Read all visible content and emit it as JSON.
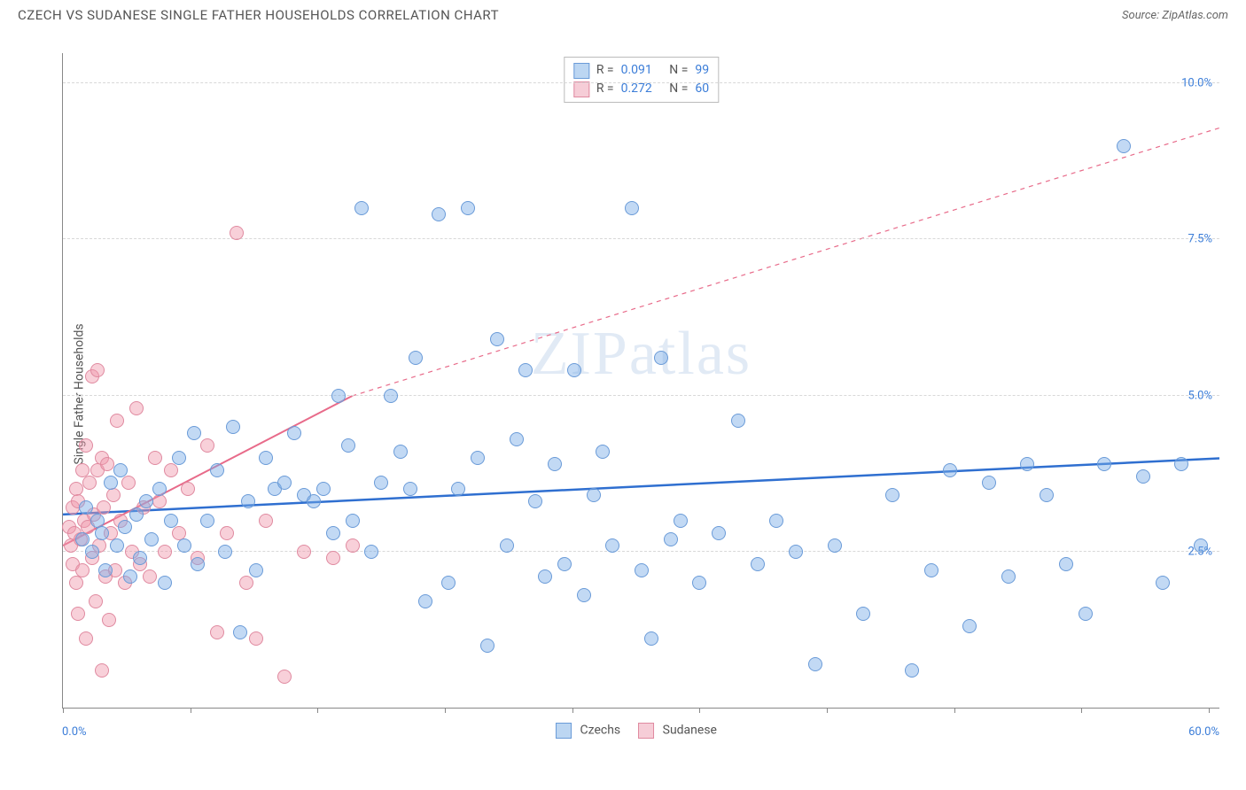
{
  "title": "CZECH VS SUDANESE SINGLE FATHER HOUSEHOLDS CORRELATION CHART",
  "source_label": "Source: ZipAtlas.com",
  "watermark": "ZIPatlas",
  "yaxis_label": "Single Father Households",
  "chart": {
    "type": "scatter",
    "x_min": 0.0,
    "x_max": 60.0,
    "y_min": 0.0,
    "y_max": 10.5,
    "x_min_label": "0.0%",
    "x_max_label": "60.0%",
    "y_ticks": [
      2.5,
      5.0,
      7.5,
      10.0
    ],
    "y_tick_labels": [
      "2.5%",
      "5.0%",
      "7.5%",
      "10.0%"
    ],
    "x_tick_positions": [
      0,
      6.6,
      13.2,
      19.8,
      26.4,
      33.0,
      39.6,
      46.2,
      52.8,
      59.4
    ],
    "grid_color": "#d8d8d8",
    "axis_color": "#888888",
    "background_color": "#ffffff",
    "marker_radius": 8,
    "marker_border_width": 1.2,
    "series": {
      "czechs": {
        "label": "Czechs",
        "fill": "rgba(120,170,230,0.45)",
        "stroke": "#6a9bd8",
        "swatch_fill": "#bcd6f2",
        "swatch_border": "#6a9bd8",
        "trend": {
          "color": "#2f6fd0",
          "width": 2.5,
          "dash": "none",
          "x1": 0,
          "y1": 3.1,
          "x2": 60,
          "y2": 4.0
        },
        "R": "0.091",
        "N": "99",
        "points": [
          [
            1.0,
            2.7
          ],
          [
            1.2,
            3.2
          ],
          [
            1.5,
            2.5
          ],
          [
            1.8,
            3.0
          ],
          [
            2.0,
            2.8
          ],
          [
            2.2,
            2.2
          ],
          [
            2.5,
            3.6
          ],
          [
            2.8,
            2.6
          ],
          [
            3.0,
            3.8
          ],
          [
            3.2,
            2.9
          ],
          [
            3.5,
            2.1
          ],
          [
            3.8,
            3.1
          ],
          [
            4.0,
            2.4
          ],
          [
            4.3,
            3.3
          ],
          [
            4.6,
            2.7
          ],
          [
            5.0,
            3.5
          ],
          [
            5.3,
            2.0
          ],
          [
            5.6,
            3.0
          ],
          [
            6.0,
            4.0
          ],
          [
            6.3,
            2.6
          ],
          [
            6.8,
            4.4
          ],
          [
            7.0,
            2.3
          ],
          [
            7.5,
            3.0
          ],
          [
            8.0,
            3.8
          ],
          [
            8.4,
            2.5
          ],
          [
            8.8,
            4.5
          ],
          [
            9.2,
            1.2
          ],
          [
            9.6,
            3.3
          ],
          [
            10.0,
            2.2
          ],
          [
            10.5,
            4.0
          ],
          [
            11.0,
            3.5
          ],
          [
            11.5,
            3.6
          ],
          [
            12.0,
            4.4
          ],
          [
            12.5,
            3.4
          ],
          [
            13.0,
            3.3
          ],
          [
            13.5,
            3.5
          ],
          [
            14.0,
            2.8
          ],
          [
            14.3,
            5.0
          ],
          [
            14.8,
            4.2
          ],
          [
            15.0,
            3.0
          ],
          [
            15.5,
            8.0
          ],
          [
            16.0,
            2.5
          ],
          [
            16.5,
            3.6
          ],
          [
            17.0,
            5.0
          ],
          [
            17.5,
            4.1
          ],
          [
            18.0,
            3.5
          ],
          [
            18.3,
            5.6
          ],
          [
            18.8,
            1.7
          ],
          [
            19.5,
            7.9
          ],
          [
            20.0,
            2.0
          ],
          [
            20.5,
            3.5
          ],
          [
            21.0,
            8.0
          ],
          [
            21.5,
            4.0
          ],
          [
            22.0,
            1.0
          ],
          [
            22.5,
            5.9
          ],
          [
            23.0,
            2.6
          ],
          [
            23.5,
            4.3
          ],
          [
            24.0,
            5.4
          ],
          [
            24.5,
            3.3
          ],
          [
            25.0,
            2.1
          ],
          [
            25.5,
            3.9
          ],
          [
            26.0,
            2.3
          ],
          [
            26.5,
            5.4
          ],
          [
            27.0,
            1.8
          ],
          [
            27.5,
            3.4
          ],
          [
            28.0,
            4.1
          ],
          [
            28.5,
            2.6
          ],
          [
            29.5,
            8.0
          ],
          [
            30.0,
            2.2
          ],
          [
            30.5,
            1.1
          ],
          [
            31.0,
            5.6
          ],
          [
            31.5,
            2.7
          ],
          [
            32.0,
            3.0
          ],
          [
            33.0,
            2.0
          ],
          [
            34.0,
            2.8
          ],
          [
            35.0,
            4.6
          ],
          [
            36.0,
            2.3
          ],
          [
            37.0,
            3.0
          ],
          [
            38.0,
            2.5
          ],
          [
            39.0,
            0.7
          ],
          [
            40.0,
            2.6
          ],
          [
            41.5,
            1.5
          ],
          [
            43.0,
            3.4
          ],
          [
            44.0,
            0.6
          ],
          [
            45.0,
            2.2
          ],
          [
            46.0,
            3.8
          ],
          [
            47.0,
            1.3
          ],
          [
            48.0,
            3.6
          ],
          [
            49.0,
            2.1
          ],
          [
            50.0,
            3.9
          ],
          [
            51.0,
            3.4
          ],
          [
            52.0,
            2.3
          ],
          [
            53.0,
            1.5
          ],
          [
            54.0,
            3.9
          ],
          [
            55.0,
            9.0
          ],
          [
            56.0,
            3.7
          ],
          [
            57.0,
            2.0
          ],
          [
            58.0,
            3.9
          ],
          [
            59.0,
            2.6
          ]
        ]
      },
      "sudanese": {
        "label": "Sudanese",
        "fill": "rgba(240,150,170,0.45)",
        "stroke": "#e08aa0",
        "swatch_fill": "#f6cdd7",
        "swatch_border": "#e08aa0",
        "trend": {
          "color": "#e86b8a",
          "width": 2,
          "dash": "none",
          "x1": 0,
          "y1": 2.6,
          "x2": 15,
          "y2": 5.0,
          "dash_ext": {
            "x2": 60,
            "y2": 9.3
          }
        },
        "R": "0.272",
        "N": "60",
        "points": [
          [
            0.3,
            2.9
          ],
          [
            0.4,
            2.6
          ],
          [
            0.5,
            3.2
          ],
          [
            0.5,
            2.3
          ],
          [
            0.6,
            2.8
          ],
          [
            0.7,
            3.5
          ],
          [
            0.7,
            2.0
          ],
          [
            0.8,
            3.3
          ],
          [
            0.8,
            1.5
          ],
          [
            0.9,
            2.7
          ],
          [
            1.0,
            3.8
          ],
          [
            1.0,
            2.2
          ],
          [
            1.1,
            3.0
          ],
          [
            1.2,
            4.2
          ],
          [
            1.2,
            1.1
          ],
          [
            1.3,
            2.9
          ],
          [
            1.4,
            3.6
          ],
          [
            1.5,
            2.4
          ],
          [
            1.5,
            5.3
          ],
          [
            1.6,
            3.1
          ],
          [
            1.7,
            1.7
          ],
          [
            1.8,
            3.8
          ],
          [
            1.8,
            5.4
          ],
          [
            1.9,
            2.6
          ],
          [
            2.0,
            4.0
          ],
          [
            2.0,
            0.6
          ],
          [
            2.1,
            3.2
          ],
          [
            2.2,
            2.1
          ],
          [
            2.3,
            3.9
          ],
          [
            2.4,
            1.4
          ],
          [
            2.5,
            2.8
          ],
          [
            2.6,
            3.4
          ],
          [
            2.7,
            2.2
          ],
          [
            2.8,
            4.6
          ],
          [
            3.0,
            3.0
          ],
          [
            3.2,
            2.0
          ],
          [
            3.4,
            3.6
          ],
          [
            3.6,
            2.5
          ],
          [
            3.8,
            4.8
          ],
          [
            4.0,
            2.3
          ],
          [
            4.2,
            3.2
          ],
          [
            4.5,
            2.1
          ],
          [
            4.8,
            4.0
          ],
          [
            5.0,
            3.3
          ],
          [
            5.3,
            2.5
          ],
          [
            5.6,
            3.8
          ],
          [
            6.0,
            2.8
          ],
          [
            6.5,
            3.5
          ],
          [
            7.0,
            2.4
          ],
          [
            7.5,
            4.2
          ],
          [
            8.0,
            1.2
          ],
          [
            8.5,
            2.8
          ],
          [
            9.0,
            7.6
          ],
          [
            9.5,
            2.0
          ],
          [
            10.0,
            1.1
          ],
          [
            10.5,
            3.0
          ],
          [
            11.5,
            0.5
          ],
          [
            12.5,
            2.5
          ],
          [
            14.0,
            2.4
          ],
          [
            15.0,
            2.6
          ]
        ]
      }
    }
  },
  "legend": {
    "czechs_label": "Czechs",
    "sudanese_label": "Sudanese"
  },
  "stats_labels": {
    "R": "R =",
    "N": "N ="
  }
}
